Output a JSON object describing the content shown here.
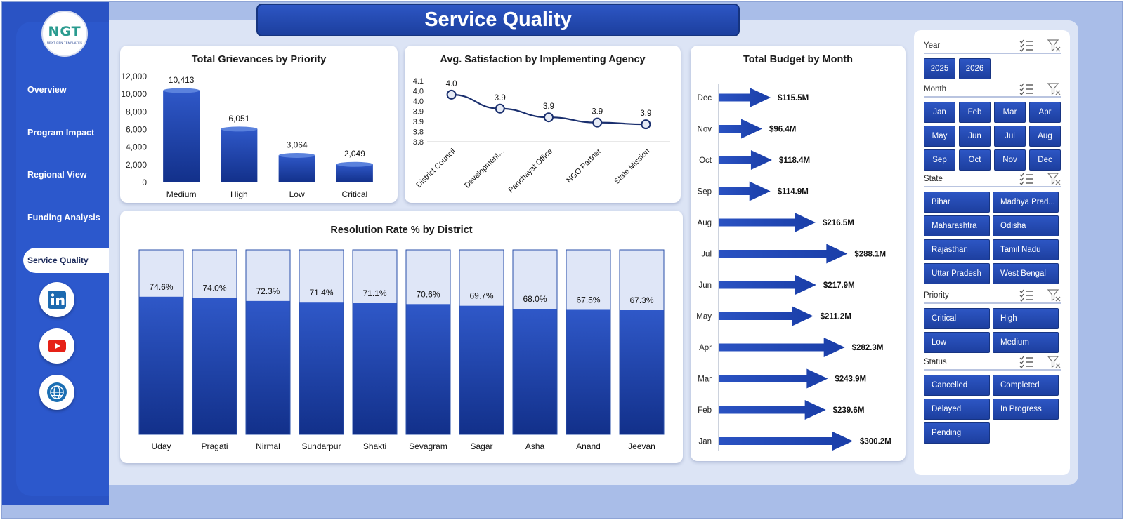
{
  "logo": {
    "text": "NGT",
    "subtext": "NEXT GEN TEMPLATES"
  },
  "nav": [
    {
      "label": "Overview"
    },
    {
      "label": "Program Impact"
    },
    {
      "label": "Regional View"
    },
    {
      "label": "Funding Analysis"
    },
    {
      "label": "Service Quality",
      "active": true
    }
  ],
  "social": [
    "linkedin-icon",
    "youtube-icon",
    "globe-icon"
  ],
  "colors": {
    "primary": "#2a53c4",
    "dark": "#163a9e",
    "light_fill": "#dfe6f7",
    "background": "#a9bde8"
  },
  "page_title": "Service Quality",
  "chart_data": [
    {
      "type": "bar",
      "title": "Total Grievances by Priority",
      "categories": [
        "Medium",
        "High",
        "Low",
        "Critical"
      ],
      "values": [
        10413,
        6051,
        3064,
        2049
      ],
      "data_labels": [
        "10,413",
        "6,051",
        "3,064",
        "2,049"
      ],
      "yticks": [
        "12,000",
        "10,000",
        "8,000",
        "6,000",
        "4,000",
        "2,000",
        "0"
      ],
      "ylim": [
        0,
        12000
      ]
    },
    {
      "type": "line",
      "title": "Avg. Satisfaction by Implementing Agency",
      "categories": [
        "District Council",
        "Development...",
        "Panchayat Office",
        "NGO Partner",
        "State Mission"
      ],
      "values": [
        4.02,
        3.94,
        3.89,
        3.86,
        3.85
      ],
      "data_labels": [
        "4.0",
        "3.9",
        "3.9",
        "3.9",
        "3.9"
      ],
      "yticks": [
        "4.1",
        "4.0",
        "4.0",
        "3.9",
        "3.9",
        "3.8",
        "3.8"
      ],
      "ylim": [
        3.75,
        4.1
      ]
    },
    {
      "type": "bar",
      "title": "Total Budget by Month",
      "orientation": "horizontal",
      "categories": [
        "Dec",
        "Nov",
        "Oct",
        "Sep",
        "Aug",
        "Jul",
        "Jun",
        "May",
        "Apr",
        "Mar",
        "Feb",
        "Jan"
      ],
      "values": [
        115.5,
        96.4,
        118.4,
        114.9,
        216.5,
        288.1,
        217.9,
        211.2,
        282.3,
        243.9,
        239.6,
        300.2
      ],
      "data_labels": [
        "$115.5M",
        "$96.4M",
        "$118.4M",
        "$114.9M",
        "$216.5M",
        "$288.1M",
        "$217.9M",
        "$211.2M",
        "$282.3M",
        "$243.9M",
        "$239.6M",
        "$300.2M"
      ]
    },
    {
      "type": "bar",
      "title": "Resolution Rate % by District",
      "categories": [
        "Uday",
        "Pragati",
        "Nirmal",
        "Sundarpur",
        "Shakti",
        "Sevagram",
        "Sagar",
        "Asha",
        "Anand",
        "Jeevan"
      ],
      "values": [
        74.6,
        74.0,
        72.3,
        71.4,
        71.1,
        70.6,
        69.7,
        68.0,
        67.5,
        67.3
      ],
      "data_labels": [
        "74.6%",
        "74.0%",
        "72.3%",
        "71.4%",
        "71.1%",
        "70.6%",
        "69.7%",
        "68.0%",
        "67.5%",
        "67.3%"
      ],
      "ylim": [
        0,
        100
      ]
    }
  ],
  "slicers": [
    {
      "title": "Year",
      "items": [
        "2025",
        "2026"
      ]
    },
    {
      "title": "Month",
      "items": [
        "Jan",
        "Feb",
        "Mar",
        "Apr",
        "May",
        "Jun",
        "Jul",
        "Aug",
        "Sep",
        "Oct",
        "Nov",
        "Dec"
      ]
    },
    {
      "title": "State",
      "items": [
        "Bihar",
        "Madhya Prad...",
        "Maharashtra",
        "Odisha",
        "Rajasthan",
        "Tamil Nadu",
        "Uttar Pradesh",
        "West Bengal"
      ]
    },
    {
      "title": "Priority",
      "items": [
        "Critical",
        "High",
        "Low",
        "Medium"
      ]
    },
    {
      "title": "Status",
      "items": [
        "Cancelled",
        "Completed",
        "Delayed",
        "In Progress",
        "Pending"
      ]
    }
  ]
}
